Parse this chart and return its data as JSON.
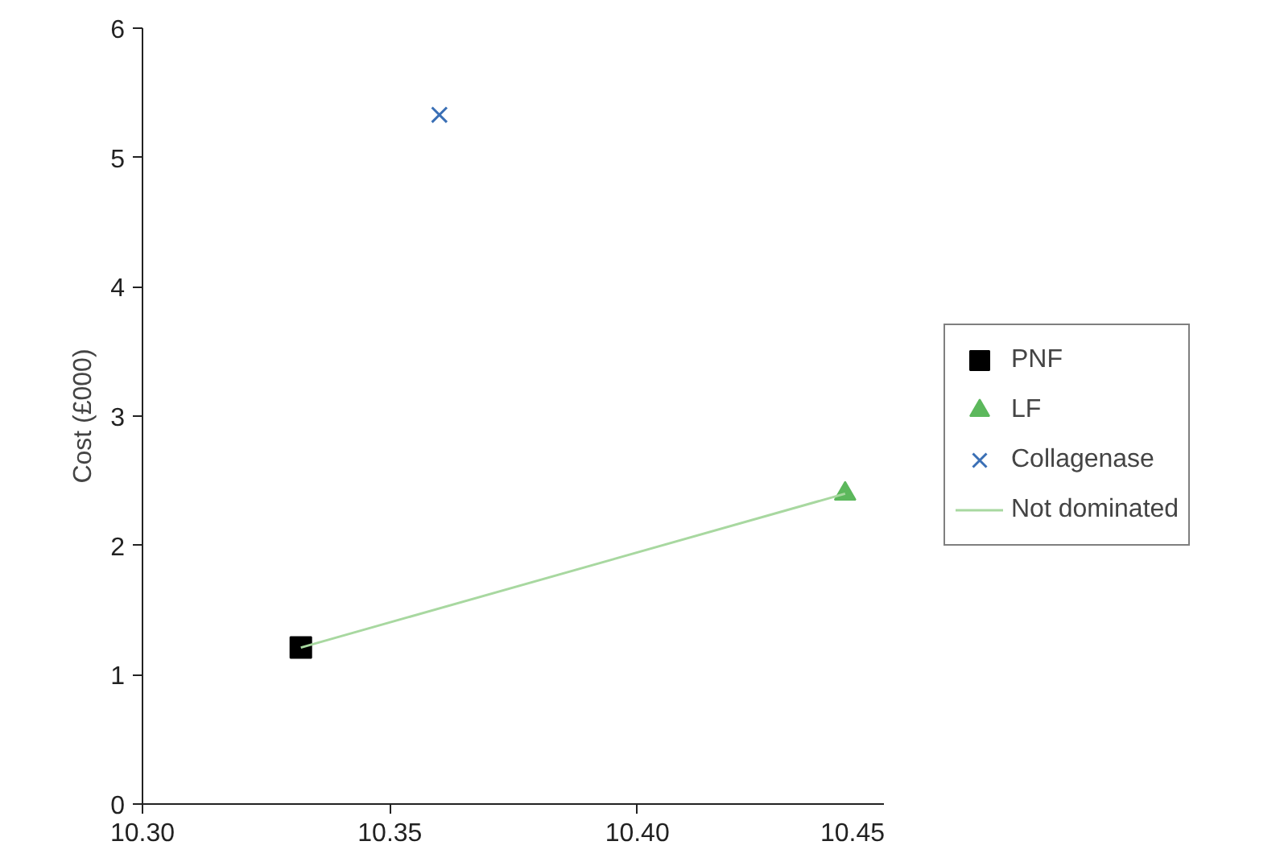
{
  "chart_data": {
    "type": "scatter",
    "ylabel": "Cost (£000)",
    "xlim": [
      10.3,
      10.45
    ],
    "xticks": [
      {
        "value": 10.3,
        "label": "10.30"
      },
      {
        "value": 10.35,
        "label": "10.35"
      },
      {
        "value": 10.4,
        "label": "10.40"
      },
      {
        "value": 10.45,
        "label": "10.45"
      }
    ],
    "ylim": [
      0,
      6
    ],
    "yticks": [
      0,
      1,
      2,
      3,
      4,
      5,
      6
    ],
    "grid": false,
    "legend": "right",
    "series": [
      {
        "name": "PNF",
        "color": "#000000",
        "marker": "square",
        "x": [
          10.332
        ],
        "values": [
          1.21
        ]
      },
      {
        "name": "LF",
        "color": "#5cb85c",
        "marker": "triangle",
        "x": [
          10.442
        ],
        "values": [
          2.4
        ]
      },
      {
        "name": "Collagenase",
        "color": "#3a6fb5",
        "marker": "cross",
        "x": [
          10.36
        ],
        "values": [
          5.33
        ]
      },
      {
        "name": "Not dominated",
        "type": "line",
        "color": "#a8d8a0",
        "marker": "none",
        "x": [
          10.332,
          10.442
        ],
        "values": [
          1.21,
          2.4
        ]
      }
    ]
  }
}
